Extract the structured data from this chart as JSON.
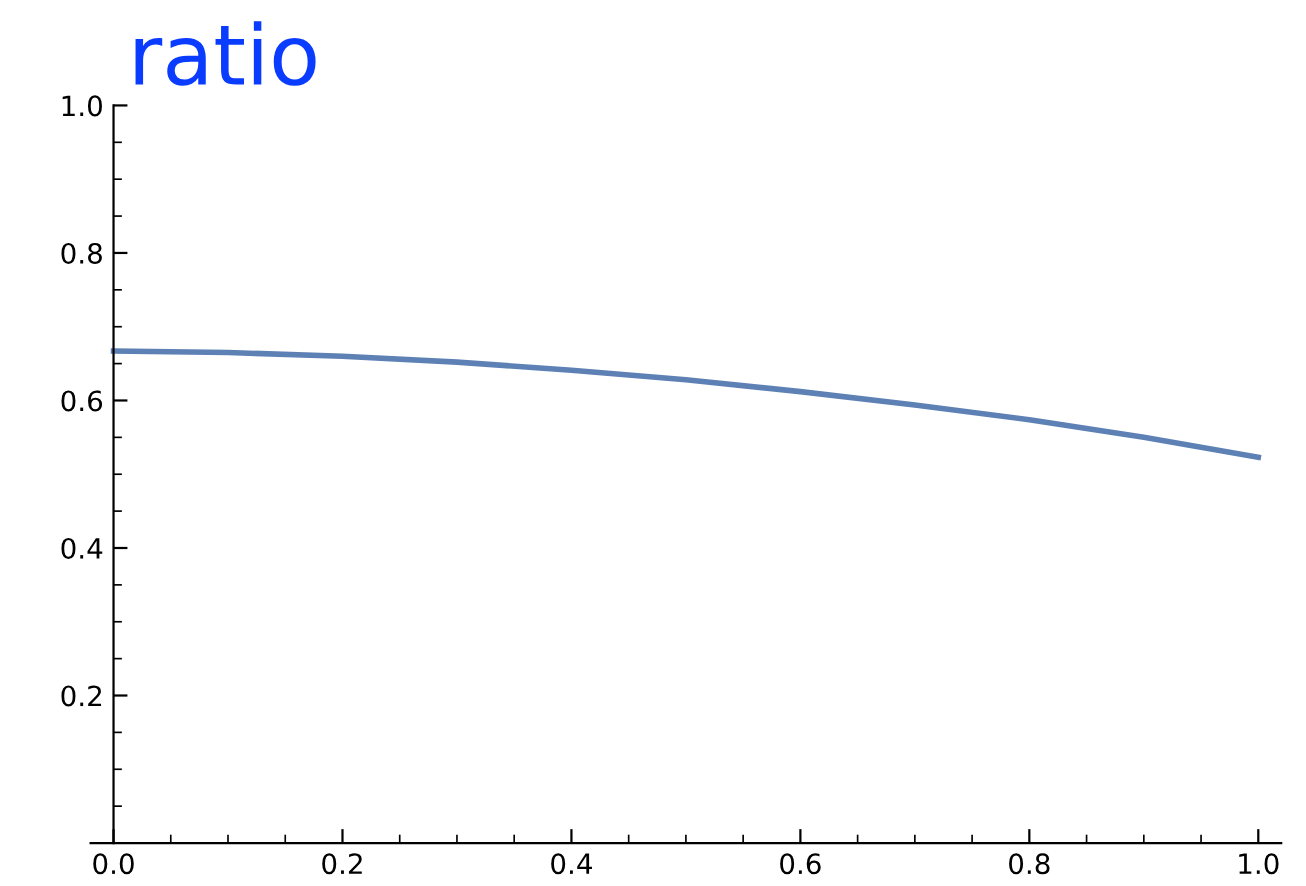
{
  "chart_data": {
    "type": "line",
    "title": "ratio",
    "x": [
      0,
      0.1,
      0.2,
      0.3,
      0.4,
      0.5,
      0.6,
      0.7,
      0.8,
      0.9,
      1.0
    ],
    "series": [
      {
        "color": "#5e81b5",
        "values": [
          0.667,
          0.665,
          0.66,
          0.652,
          0.641,
          0.628,
          0.612,
          0.594,
          0.574,
          0.55,
          0.523
        ]
      }
    ],
    "xlim": [
      -0.02,
      1.02
    ],
    "ylim": [
      0,
      1
    ],
    "xticks": [
      {
        "value": 0,
        "label": "0.0"
      },
      0.2,
      0.4,
      0.6,
      0.8,
      {
        "value": 1,
        "label": "1.0"
      }
    ],
    "yticks": [
      0.2,
      0.4,
      0.6,
      0.8,
      {
        "value": 1,
        "label": "1.0"
      }
    ],
    "grid": false,
    "legend": false,
    "marker": "none",
    "line_style": "solid"
  }
}
